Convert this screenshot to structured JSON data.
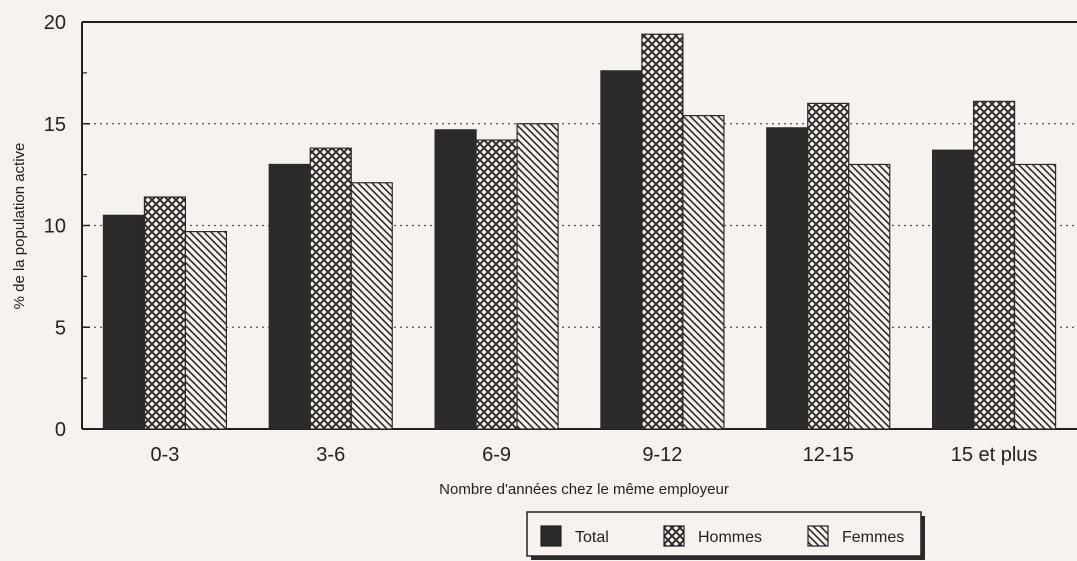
{
  "chart_data": {
    "type": "bar",
    "title": "",
    "xlabel": "Nombre d'années chez le même employeur",
    "ylabel": "% de la population active",
    "categories": [
      "0-3",
      "3-6",
      "6-9",
      "9-12",
      "12-15",
      "15 et plus"
    ],
    "series": [
      {
        "name": "Total",
        "values": [
          10.5,
          13.0,
          14.7,
          17.6,
          14.8,
          13.7
        ]
      },
      {
        "name": "Hommes",
        "values": [
          11.4,
          13.8,
          14.2,
          19.4,
          16.0,
          16.1
        ]
      },
      {
        "name": "Femmes",
        "values": [
          9.7,
          12.1,
          15.0,
          15.4,
          13.0,
          13.0
        ]
      }
    ],
    "ylim": [
      0,
      20
    ],
    "yticks": [
      0,
      5,
      10,
      15,
      20
    ],
    "grid": "dotted horizontal at 5, 10, 15",
    "legend": {
      "placement": "bottom-right",
      "entries": [
        "Total",
        "Hommes",
        "Femmes"
      ]
    },
    "colors": {
      "Total": "#2a2a2a",
      "Hommes": "#3a3a3a",
      "Femmes": "#3a3a3a"
    },
    "patterns": {
      "Total": "solid",
      "Hommes": "crosshatch",
      "Femmes": "diagonal-lines"
    }
  }
}
